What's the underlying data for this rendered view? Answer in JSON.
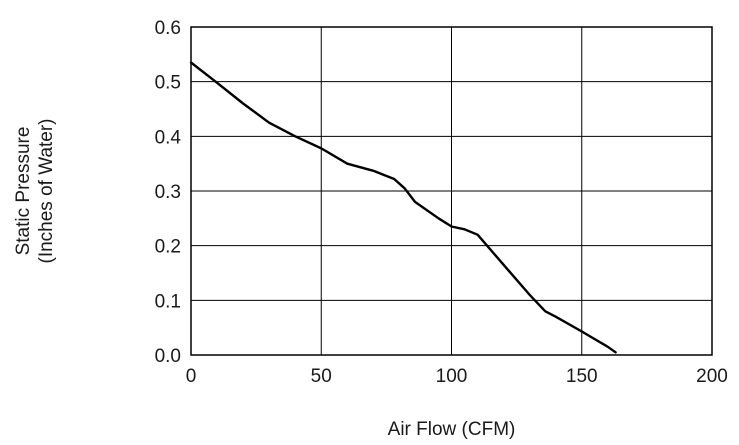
{
  "chart_data": {
    "type": "line",
    "title": "",
    "xlabel": "Air Flow (CFM)",
    "ylabel_lines": [
      "Static Pressure",
      "(Inches of Water)"
    ],
    "xlim": [
      0,
      200
    ],
    "ylim": [
      0,
      0.6
    ],
    "x_ticks": [
      0,
      50,
      100,
      150,
      200
    ],
    "y_ticks": [
      0.0,
      0.1,
      0.2,
      0.3,
      0.4,
      0.5,
      0.6
    ],
    "x_tick_labels": [
      "0",
      "50",
      "100",
      "150",
      "200"
    ],
    "y_tick_labels": [
      "0.0",
      "0.1",
      "0.2",
      "0.3",
      "0.4",
      "0.5",
      "0.6"
    ],
    "grid": true,
    "legend": "none",
    "series": [
      {
        "color": "#000000",
        "x": [
          0,
          10,
          20,
          30,
          40,
          50,
          60,
          70,
          78,
          82,
          86,
          95,
          100,
          105,
          110,
          120,
          130,
          136,
          140,
          150,
          160,
          163
        ],
        "y": [
          0.535,
          0.498,
          0.46,
          0.425,
          0.4,
          0.378,
          0.35,
          0.337,
          0.322,
          0.305,
          0.28,
          0.25,
          0.235,
          0.23,
          0.22,
          0.165,
          0.11,
          0.08,
          0.07,
          0.043,
          0.015,
          0.005
        ]
      }
    ]
  }
}
